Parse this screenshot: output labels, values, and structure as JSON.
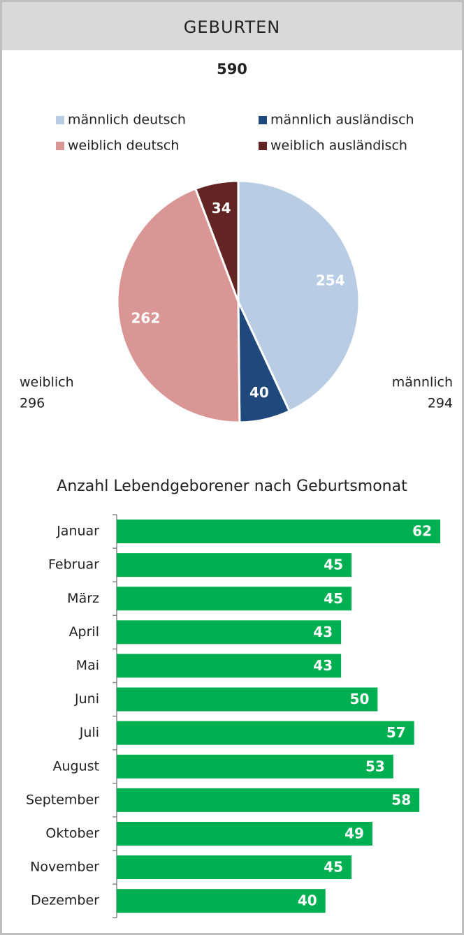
{
  "header": {
    "title": "GEBURTEN",
    "total": 590
  },
  "chart_data": [
    {
      "type": "pie",
      "series": [
        {
          "name": "männlich deutsch",
          "color": "#b8cce4",
          "values": [
            254
          ]
        },
        {
          "name": "männlich ausländisch",
          "color": "#1f497d",
          "values": [
            40
          ]
        },
        {
          "name": "weiblich deutsch",
          "color": "#d99694",
          "values": [
            262
          ]
        },
        {
          "name": "weiblich ausländisch",
          "color": "#632523",
          "values": [
            34
          ]
        }
      ],
      "annotations": [
        {
          "label": "weiblich",
          "value": 296
        },
        {
          "label": "männlich",
          "value": 294
        }
      ]
    },
    {
      "type": "barh",
      "title": "Anzahl Lebendgeborener nach Geburtsmonat",
      "categories": [
        "Januar",
        "Februar",
        "März",
        "April",
        "Mai",
        "Juni",
        "Juli",
        "August",
        "September",
        "Oktober",
        "November",
        "Dezember"
      ],
      "values": [
        62,
        45,
        45,
        43,
        43,
        50,
        57,
        53,
        58,
        49,
        45,
        40
      ],
      "color": "#00b050",
      "xlim": [
        0,
        62
      ]
    }
  ]
}
